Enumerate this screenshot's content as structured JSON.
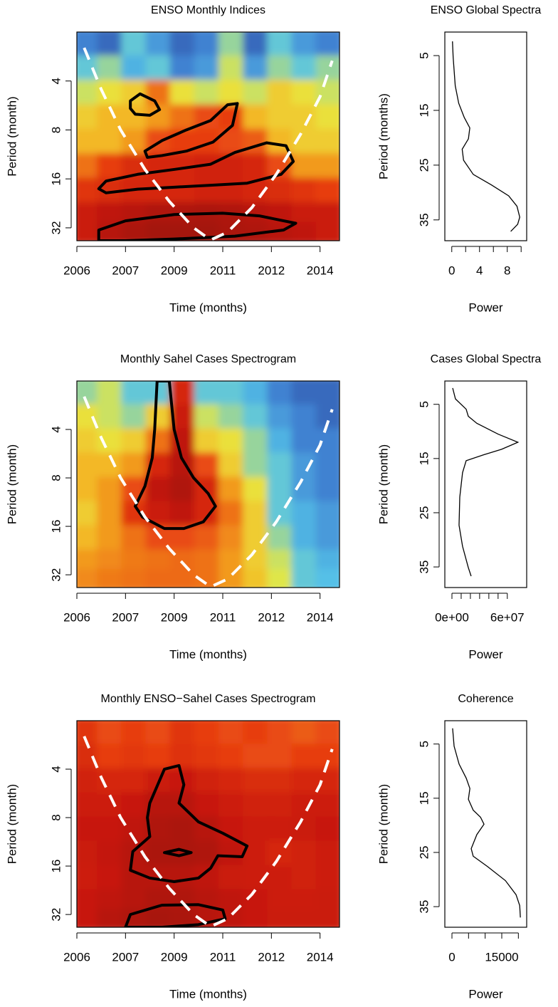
{
  "chart_data": [
    {
      "type": "heatmap",
      "title": "ENSO Monthly Indices",
      "xlabel": "Time (months)",
      "ylabel": "Period (month)",
      "xlim": [
        0,
        108
      ],
      "xticks": [
        {
          "value": 0,
          "label": "2006"
        },
        {
          "value": 20,
          "label": "2007"
        },
        {
          "value": 40,
          "label": "2009"
        },
        {
          "value": 60,
          "label": "2011"
        },
        {
          "value": 80,
          "label": "2012"
        },
        {
          "value": 100,
          "label": "2014"
        }
      ],
      "ylim": [
        2,
        38.4
      ],
      "yticks": [
        4,
        8,
        16,
        32
      ],
      "log_y": true,
      "x": [
        5,
        15,
        25,
        35,
        45,
        55,
        65,
        75,
        85,
        95,
        105
      ],
      "periods": [
        2.5,
        3.5,
        5,
        7,
        10,
        14,
        20,
        28,
        35
      ],
      "z": [
        [
          0.15,
          0.1,
          0.3,
          0.2,
          0.1,
          0.15,
          0.35,
          0.1,
          0.3,
          0.2,
          0.15
        ],
        [
          0.3,
          0.35,
          0.25,
          0.3,
          0.15,
          0.2,
          0.4,
          0.2,
          0.35,
          0.3,
          0.35
        ],
        [
          0.4,
          0.45,
          0.5,
          0.65,
          0.45,
          0.4,
          0.45,
          0.4,
          0.5,
          0.45,
          0.4
        ],
        [
          0.5,
          0.55,
          0.55,
          0.6,
          0.65,
          0.7,
          0.72,
          0.55,
          0.5,
          0.5,
          0.45
        ],
        [
          0.55,
          0.55,
          0.6,
          0.7,
          0.72,
          0.72,
          0.7,
          0.68,
          0.55,
          0.5,
          0.5
        ],
        [
          0.65,
          0.72,
          0.78,
          0.8,
          0.8,
          0.82,
          0.82,
          0.8,
          0.7,
          0.6,
          0.6
        ],
        [
          0.75,
          0.78,
          0.8,
          0.8,
          0.8,
          0.82,
          0.82,
          0.8,
          0.78,
          0.75,
          0.72
        ],
        [
          0.85,
          0.88,
          0.9,
          0.92,
          0.92,
          0.93,
          0.92,
          0.9,
          0.88,
          0.85,
          0.85
        ],
        [
          0.85,
          0.9,
          0.93,
          0.95,
          0.95,
          0.95,
          0.93,
          0.92,
          0.9,
          0.88,
          0.85
        ]
      ],
      "colormap": [
        "#2b3990",
        "#3f7fd0",
        "#55c3e8",
        "#e8e840",
        "#f5b020",
        "#e84010",
        "#c81810",
        "#901010"
      ],
      "coi": {
        "x": [
          3,
          10,
          18,
          28,
          38,
          48,
          55,
          62,
          72,
          82,
          92,
          100,
          105
        ],
        "period": [
          2.5,
          4.5,
          8,
          14,
          22,
          32,
          38,
          34,
          24,
          15,
          8.5,
          5,
          3
        ]
      },
      "contours": [
        {
          "x": [
            22,
            26,
            32,
            34,
            30,
            24,
            22
          ],
          "period": [
            5.3,
            4.8,
            5.3,
            6,
            6.5,
            6.4,
            5.9
          ]
        },
        {
          "x": [
            28,
            35,
            45,
            55,
            62,
            66,
            64,
            56,
            45,
            35,
            29
          ],
          "period": [
            10.8,
            9.3,
            8,
            7,
            5.6,
            5.5,
            7.5,
            9.5,
            10.8,
            11.5,
            11.8
          ]
        },
        {
          "x": [
            9,
            12,
            25,
            40,
            55,
            65,
            78,
            86,
            89,
            84,
            70,
            55,
            40,
            25,
            12
          ],
          "period": [
            18.4,
            16.5,
            15,
            14,
            13,
            11,
            9.6,
            10,
            12.5,
            15,
            17,
            17.5,
            18,
            18.5,
            19.5
          ]
        },
        {
          "x": [
            9,
            9,
            20,
            40,
            60,
            75,
            90,
            85,
            65,
            40,
            20
          ],
          "period": [
            38.4,
            33,
            29,
            26.5,
            26,
            27,
            30,
            33,
            36,
            37.5,
            38.4
          ]
        }
      ]
    },
    {
      "type": "line",
      "title": "ENSO Global Spectra",
      "xlabel": "Power",
      "ylabel": "Period (months)",
      "xlim": [
        -1.0,
        10.8
      ],
      "xticks": [
        0,
        4,
        8
      ],
      "xminor_ticks": [
        2,
        6,
        10
      ],
      "ylim": [
        0.7,
        38.8
      ],
      "yticks": [
        5,
        15,
        25,
        35
      ],
      "periods": [
        2.4,
        5.3,
        10.5,
        13.7,
        16.3,
        18.2,
        20.2,
        22.1,
        24.1,
        26.7,
        28.6,
        30.6,
        32.5,
        34.5,
        35.8,
        37.1
      ],
      "values": [
        0.1,
        0.2,
        0.5,
        1.0,
        1.8,
        2.6,
        2.4,
        1.5,
        1.7,
        3.1,
        5.7,
        8.2,
        9.4,
        9.8,
        9.5,
        8.5
      ],
      "color": "#000000"
    },
    {
      "type": "heatmap",
      "title": "Monthly Sahel Cases Spectrogram",
      "xlabel": "Time (months)",
      "ylabel": "Period (month)",
      "xlim": [
        0,
        108
      ],
      "xticks": [
        {
          "value": 0,
          "label": "2006"
        },
        {
          "value": 20,
          "label": "2007"
        },
        {
          "value": 40,
          "label": "2009"
        },
        {
          "value": 60,
          "label": "2011"
        },
        {
          "value": 80,
          "label": "2012"
        },
        {
          "value": 100,
          "label": "2014"
        }
      ],
      "ylim": [
        2,
        38.4
      ],
      "yticks": [
        4,
        8,
        16,
        32
      ],
      "log_y": true,
      "x": [
        5,
        15,
        25,
        35,
        45,
        55,
        65,
        75,
        85,
        95,
        105
      ],
      "periods": [
        2.5,
        3.5,
        5,
        7,
        10,
        14,
        20,
        28,
        35
      ],
      "z": [
        [
          0.35,
          0.4,
          0.3,
          0.3,
          0.8,
          0.3,
          0.3,
          0.25,
          0.15,
          0.1,
          0.1
        ],
        [
          0.45,
          0.4,
          0.35,
          0.5,
          0.85,
          0.4,
          0.35,
          0.3,
          0.2,
          0.15,
          0.1
        ],
        [
          0.5,
          0.45,
          0.5,
          0.65,
          0.88,
          0.5,
          0.45,
          0.35,
          0.25,
          0.15,
          0.15
        ],
        [
          0.55,
          0.55,
          0.6,
          0.8,
          0.9,
          0.7,
          0.5,
          0.35,
          0.3,
          0.2,
          0.15
        ],
        [
          0.55,
          0.6,
          0.7,
          0.88,
          0.92,
          0.8,
          0.6,
          0.45,
          0.3,
          0.2,
          0.15
        ],
        [
          0.5,
          0.6,
          0.75,
          0.85,
          0.88,
          0.8,
          0.65,
          0.5,
          0.3,
          0.25,
          0.2
        ],
        [
          0.55,
          0.6,
          0.65,
          0.7,
          0.7,
          0.68,
          0.62,
          0.5,
          0.35,
          0.25,
          0.2
        ],
        [
          0.6,
          0.62,
          0.64,
          0.65,
          0.66,
          0.65,
          0.6,
          0.5,
          0.4,
          0.3,
          0.25
        ],
        [
          0.62,
          0.64,
          0.65,
          0.66,
          0.66,
          0.65,
          0.6,
          0.52,
          0.42,
          0.3,
          0.28
        ]
      ],
      "colormap": [
        "#2b3990",
        "#3f7fd0",
        "#55c3e8",
        "#e8e840",
        "#f5b020",
        "#e84010",
        "#c81810",
        "#901010"
      ],
      "coi": {
        "x": [
          3,
          10,
          18,
          28,
          38,
          48,
          55,
          62,
          72,
          82,
          92,
          100,
          105
        ],
        "period": [
          2.5,
          4.5,
          8,
          14,
          22,
          32,
          38,
          34,
          24,
          15,
          8.5,
          5,
          3
        ]
      },
      "contours": [
        {
          "x": [
            33,
            38,
            40,
            43,
            48,
            54,
            57,
            52,
            44,
            36,
            27,
            24,
            28,
            31,
            32
          ],
          "period": [
            2,
            2,
            4,
            6,
            8,
            10,
            12,
            15,
            16.5,
            16.5,
            14,
            12,
            9,
            6,
            4
          ]
        }
      ]
    },
    {
      "type": "line",
      "title": "Cases Global Spectra",
      "xlabel": "Power",
      "ylabel": "Period (month)",
      "xlim": [
        -7700000,
        81000000
      ],
      "xticks": [
        {
          "value": 0,
          "label": "0e+00"
        },
        {
          "value": 60000000,
          "label": "6e+07"
        }
      ],
      "xminor_ticks": [
        10000000,
        20000000,
        30000000,
        40000000,
        50000000
      ],
      "ylim": [
        0.7,
        38.8
      ],
      "yticks": [
        5,
        15,
        25,
        35
      ],
      "periods": [
        2.0,
        4.0,
        5.9,
        7.2,
        8.5,
        10.5,
        12.0,
        13.3,
        14.3,
        15.4,
        17.6,
        22.1,
        27.3,
        31.2,
        35.1,
        36.7
      ],
      "values": [
        800000,
        3800000,
        15400000,
        17700000,
        26900000,
        50000000,
        71500000,
        53800000,
        34600000,
        15400000,
        11500000,
        8500000,
        7700000,
        11500000,
        17700000,
        20800000
      ],
      "color": "#000000"
    },
    {
      "type": "heatmap",
      "title": "Monthly ENSO−Sahel Cases Spectrogram",
      "xlabel": "Time (months)",
      "ylabel": "Period (month)",
      "xlim": [
        0,
        108
      ],
      "xticks": [
        {
          "value": 0,
          "label": "2006"
        },
        {
          "value": 20,
          "label": "2007"
        },
        {
          "value": 40,
          "label": "2009"
        },
        {
          "value": 60,
          "label": "2011"
        },
        {
          "value": 80,
          "label": "2012"
        },
        {
          "value": 100,
          "label": "2014"
        }
      ],
      "ylim": [
        2,
        38.4
      ],
      "yticks": [
        4,
        8,
        16,
        32
      ],
      "log_y": true,
      "x": [
        5,
        15,
        25,
        35,
        45,
        55,
        65,
        75,
        85,
        95,
        105
      ],
      "periods": [
        2.5,
        3.5,
        5,
        7,
        10,
        14,
        20,
        28,
        35
      ],
      "z": [
        [
          0.75,
          0.7,
          0.72,
          0.7,
          0.75,
          0.72,
          0.7,
          0.72,
          0.7,
          0.68,
          0.7
        ],
        [
          0.78,
          0.72,
          0.74,
          0.72,
          0.76,
          0.74,
          0.72,
          0.7,
          0.7,
          0.72,
          0.72
        ],
        [
          0.82,
          0.8,
          0.8,
          0.85,
          0.86,
          0.82,
          0.8,
          0.78,
          0.78,
          0.8,
          0.8
        ],
        [
          0.84,
          0.84,
          0.86,
          0.9,
          0.9,
          0.86,
          0.84,
          0.82,
          0.82,
          0.84,
          0.84
        ],
        [
          0.86,
          0.86,
          0.88,
          0.92,
          0.93,
          0.9,
          0.86,
          0.84,
          0.84,
          0.85,
          0.86
        ],
        [
          0.85,
          0.87,
          0.9,
          0.93,
          0.93,
          0.92,
          0.88,
          0.84,
          0.8,
          0.82,
          0.84
        ],
        [
          0.84,
          0.86,
          0.9,
          0.9,
          0.9,
          0.88,
          0.85,
          0.84,
          0.84,
          0.82,
          0.84
        ],
        [
          0.86,
          0.88,
          0.9,
          0.92,
          0.92,
          0.9,
          0.88,
          0.86,
          0.84,
          0.84,
          0.85
        ],
        [
          0.86,
          0.9,
          0.92,
          0.94,
          0.93,
          0.9,
          0.88,
          0.86,
          0.85,
          0.85,
          0.85
        ]
      ],
      "colormap": [
        "#2b3990",
        "#3f7fd0",
        "#55c3e8",
        "#e8e840",
        "#f5b020",
        "#e84010",
        "#c81810",
        "#901010"
      ],
      "coi": {
        "x": [
          3,
          10,
          18,
          28,
          38,
          48,
          55,
          62,
          72,
          82,
          92,
          100,
          105
        ],
        "period": [
          2.5,
          4.5,
          8,
          14,
          22,
          32,
          38,
          34,
          24,
          15,
          8.5,
          5,
          3
        ]
      },
      "contours": [
        {
          "x": [
            30,
            36,
            42,
            44,
            42,
            50,
            60,
            70,
            68,
            58,
            55,
            50,
            40,
            30,
            22,
            23,
            30,
            29
          ],
          "period": [
            6.5,
            4,
            3.8,
            5,
            6.5,
            8.5,
            10,
            12,
            14,
            13.8,
            16.5,
            19,
            20,
            19,
            17,
            13,
            10.5,
            8
          ]
        },
        {
          "x": [
            36,
            42,
            47,
            42
          ],
          "period": [
            13.2,
            12.6,
            13.2,
            13.8
          ]
        },
        {
          "x": [
            20,
            22,
            35,
            50,
            60,
            61,
            50,
            35
          ],
          "period": [
            38.4,
            32,
            28,
            27.8,
            30,
            34,
            37,
            38.4
          ]
        }
      ]
    },
    {
      "type": "line",
      "title": "Coherence",
      "xlabel": "Power",
      "ylabel": "Period (month)",
      "xlim": [
        -2140,
        22500
      ],
      "xticks": [
        0,
        15000
      ],
      "xminor_ticks": [
        5000,
        10000,
        20000
      ],
      "ylim": [
        0.7,
        38.8
      ],
      "yticks": [
        5,
        15,
        25,
        35
      ],
      "periods": [
        2.1,
        5.4,
        8.7,
        11.3,
        13.2,
        15.2,
        17.2,
        18.5,
        19.8,
        21.7,
        24.3,
        25.7,
        27.6,
        30.2,
        32.8,
        34.8,
        37.0
      ],
      "values": [
        200,
        650,
        2150,
        4300,
        5400,
        4950,
        6400,
        8600,
        9650,
        7500,
        5800,
        6400,
        10700,
        16100,
        19300,
        20400,
        20600
      ],
      "color": "#000000"
    }
  ]
}
